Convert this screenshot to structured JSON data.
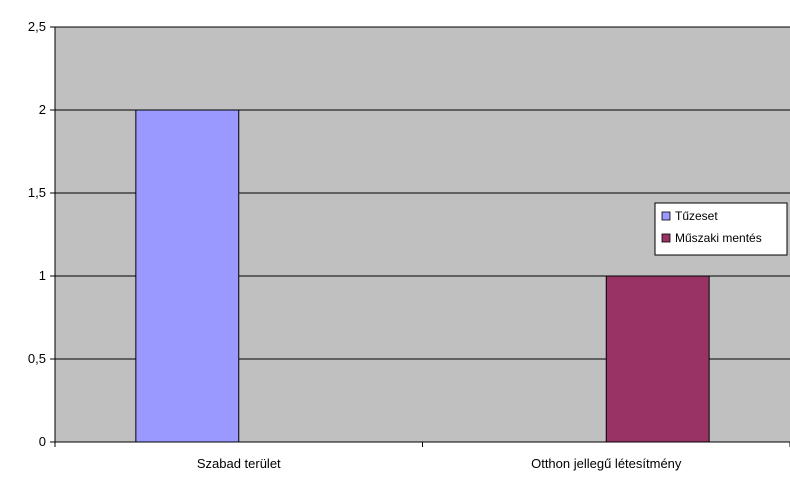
{
  "chart_data": {
    "type": "bar",
    "categories": [
      "Szabad terület",
      "Otthon jellegű létesítmény"
    ],
    "series": [
      {
        "name": "Tűzeset",
        "values": [
          2,
          0
        ],
        "color": "#9999ff"
      },
      {
        "name": "Műszaki mentés",
        "values": [
          0,
          1
        ],
        "color": "#993366"
      }
    ],
    "ylim": [
      0,
      2.5
    ],
    "yticks": [
      "0",
      "0,5",
      "1",
      "1,5",
      "2",
      "2,5"
    ],
    "ytick_values": [
      0,
      0.5,
      1,
      1.5,
      2,
      2.5
    ],
    "title": "",
    "xlabel": "",
    "ylabel": "",
    "grid": true,
    "legend_position": "right",
    "colors": {
      "plot_background": "#c0c0c0",
      "gridline": "#000000",
      "bar_border": "#000000"
    }
  }
}
